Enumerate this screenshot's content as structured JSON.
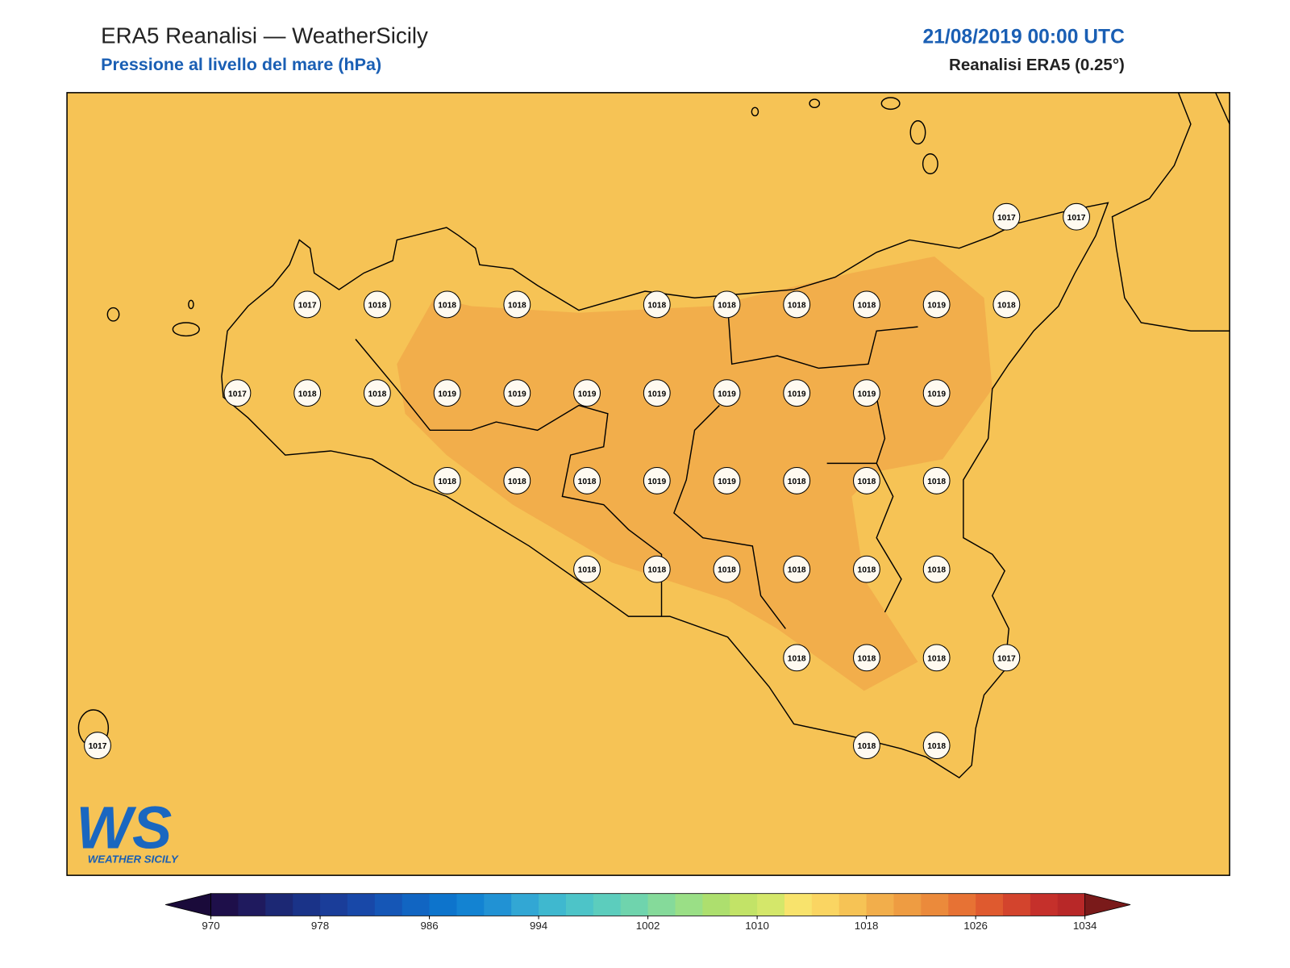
{
  "header": {
    "title": "ERA5 Reanalisi — WeatherSicily",
    "subtitle": "Pressione al livello del mare (hPa)",
    "date": "21/08/2019 00:00 UTC",
    "source": "Reanalisi ERA5 (0.25°)"
  },
  "stations": [
    1017,
    1017,
    1017,
    1018,
    1018,
    1018,
    1018,
    1018,
    1018,
    1018,
    1019,
    1018,
    1017,
    1018,
    1018,
    1019,
    1019,
    1019,
    1019,
    1019,
    1019,
    1019,
    1019,
    1018,
    1018,
    1018,
    1019,
    1019,
    1018,
    1018,
    1018,
    1018,
    1018,
    1018,
    1018,
    1018,
    1018,
    1018,
    1018,
    1018,
    1017,
    1017,
    1018,
    1018
  ],
  "colorbar": {
    "range": [
      970,
      1034
    ],
    "ticks": [
      970,
      978,
      986,
      994,
      1002,
      1010,
      1018,
      1026,
      1034
    ],
    "colors": [
      "#1e0f4a",
      "#1f1a5e",
      "#1c2874",
      "#1a3388",
      "#1a3d99",
      "#1848a8",
      "#1556b6",
      "#1165c2",
      "#0d74cc",
      "#1383d2",
      "#2192d4",
      "#32a7d4",
      "#3fb8cf",
      "#4dc4c8",
      "#5ccdbd",
      "#6fd4ad",
      "#85da9a",
      "#9adf86",
      "#addf6e",
      "#c2e367",
      "#d4e76a",
      "#f8e36c",
      "#fad562",
      "#f6c355",
      "#f2ae4b",
      "#ee9c42",
      "#eb8a3b",
      "#e77234",
      "#df5a2f",
      "#d3442d",
      "#c5302b",
      "#b82828"
    ],
    "under": "#1a0a3a",
    "over": "#7a1a1a"
  },
  "logo": {
    "mark": "WS",
    "name": "WEATHER SICILY"
  }
}
